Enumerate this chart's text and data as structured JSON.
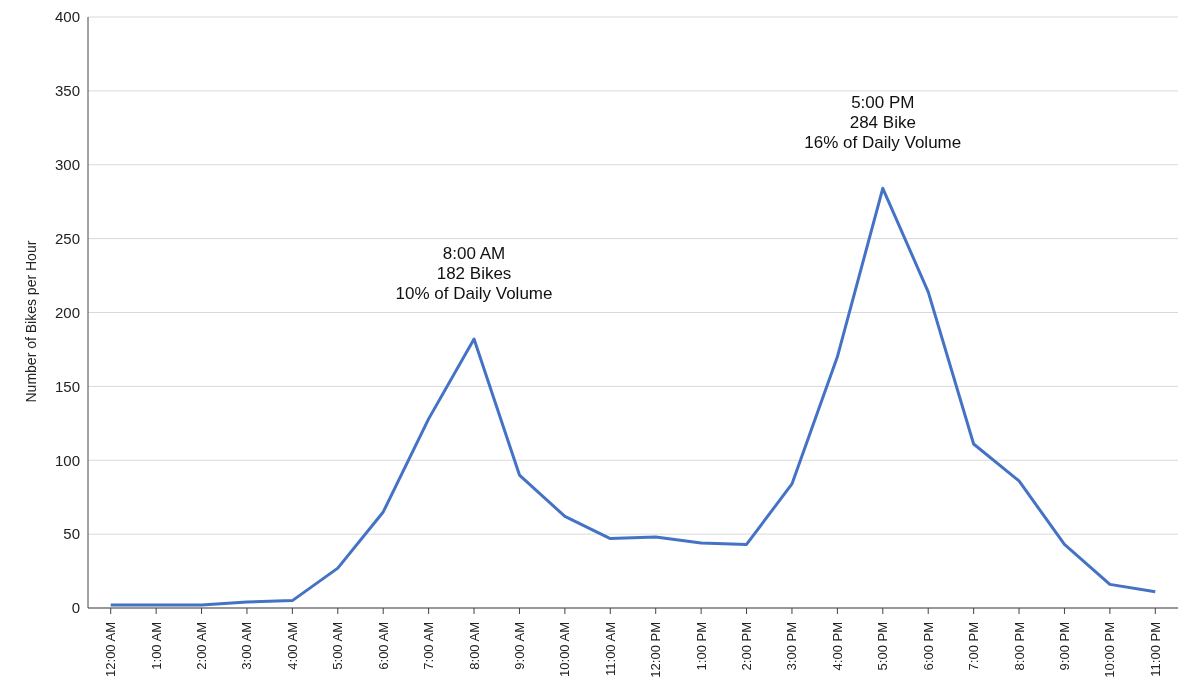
{
  "chart_data": {
    "type": "line",
    "ylabel": "Number of Bikes per Hour",
    "categories": [
      "12:00 AM",
      "1:00 AM",
      "2:00 AM",
      "3:00 AM",
      "4:00 AM",
      "5:00 AM",
      "6:00 AM",
      "7:00 AM",
      "8:00 AM",
      "9:00 AM",
      "10:00 AM",
      "11:00 AM",
      "12:00 PM",
      "1:00 PM",
      "2:00 PM",
      "3:00 PM",
      "4:00 PM",
      "5:00 PM",
      "6:00 PM",
      "7:00 PM",
      "8:00 PM",
      "9:00 PM",
      "10:00 PM",
      "11:00 PM"
    ],
    "series": [
      {
        "color": "#4472c4",
        "values": [
          2,
          2,
          2,
          4,
          5,
          27,
          65,
          128,
          182,
          90,
          62,
          47,
          48,
          44,
          43,
          84,
          170,
          284,
          214,
          111,
          86,
          43,
          16,
          11
        ]
      }
    ],
    "ylim": [
      0,
      400
    ],
    "yticks": [
      0,
      50,
      100,
      150,
      200,
      250,
      300,
      350,
      400
    ],
    "grid": "y",
    "marker": "none",
    "line_style": "solid",
    "legend": false,
    "annotations": [
      "8:00 AM",
      "182 Bikes",
      "10% of Daily Volume",
      "5:00 PM",
      "284 Bike",
      "16% of Daily Volume"
    ]
  }
}
